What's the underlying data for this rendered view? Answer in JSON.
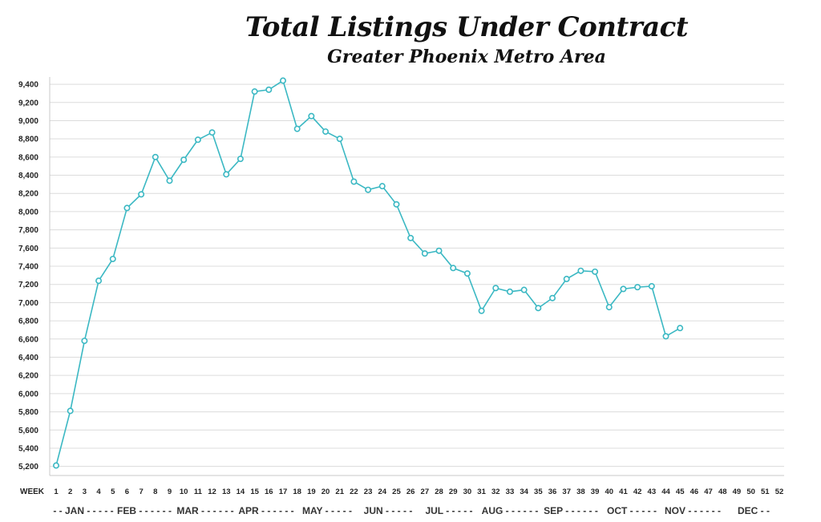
{
  "chart_data": {
    "type": "line",
    "title": "Total Listings Under Contract",
    "subtitle": "Greater Phoenix Metro Area",
    "xlabel": "WEEK",
    "ylabel": "",
    "x_ticks": [
      1,
      2,
      3,
      4,
      5,
      6,
      7,
      8,
      9,
      10,
      11,
      12,
      13,
      14,
      15,
      16,
      17,
      18,
      19,
      20,
      21,
      22,
      23,
      24,
      25,
      26,
      27,
      28,
      29,
      30,
      31,
      32,
      33,
      34,
      35,
      36,
      37,
      38,
      39,
      40,
      41,
      42,
      43,
      44,
      45,
      46,
      47,
      48,
      49,
      50,
      51,
      52
    ],
    "y_ticks": [
      "5,200",
      "5,400",
      "5,600",
      "5,800",
      "6,000",
      "6,200",
      "6,400",
      "6,600",
      "6,800",
      "7,000",
      "7,200",
      "7,400",
      "7,600",
      "7,800",
      "8,000",
      "8,200",
      "8,400",
      "8,600",
      "8,800",
      "9,000",
      "9,200",
      "9,400"
    ],
    "ylim": [
      5100,
      9480
    ],
    "xlim": [
      1,
      52
    ],
    "grid": true,
    "line_color": "#3bb8c3",
    "month_labels": [
      "- - JAN - - - - -",
      "FEB - - - - - -",
      "MAR - - - - - -",
      "APR - - - - - -",
      "MAY - - - - -",
      "JUN - - - - -",
      "JUL - - - - -",
      "AUG - - - - - -",
      "SEP - - - - - -",
      "OCT - - - - -",
      "NOV - - - - - -",
      "DEC - -"
    ],
    "series": [
      {
        "name": "",
        "x": [
          1,
          2,
          3,
          4,
          5,
          6,
          7,
          8,
          9,
          10,
          11,
          12,
          13,
          14,
          15,
          16,
          17,
          18,
          19,
          20,
          21,
          22,
          23,
          24,
          25,
          26,
          27,
          28,
          29,
          30,
          31,
          32,
          33,
          34,
          35,
          36,
          37,
          38,
          39,
          40,
          41,
          42,
          43,
          44,
          45
        ],
        "values": [
          5210,
          5810,
          6580,
          7240,
          7480,
          8040,
          8190,
          8600,
          8340,
          8570,
          8790,
          8870,
          8410,
          8580,
          9320,
          9340,
          9440,
          8910,
          9050,
          8880,
          8800,
          8330,
          8240,
          8280,
          8080,
          7710,
          7540,
          7570,
          7380,
          7320,
          6910,
          7160,
          7120,
          7140,
          6940,
          7050,
          7260,
          7350,
          7340,
          6950,
          7150,
          7170,
          7180,
          6630,
          6720
        ]
      }
    ]
  }
}
